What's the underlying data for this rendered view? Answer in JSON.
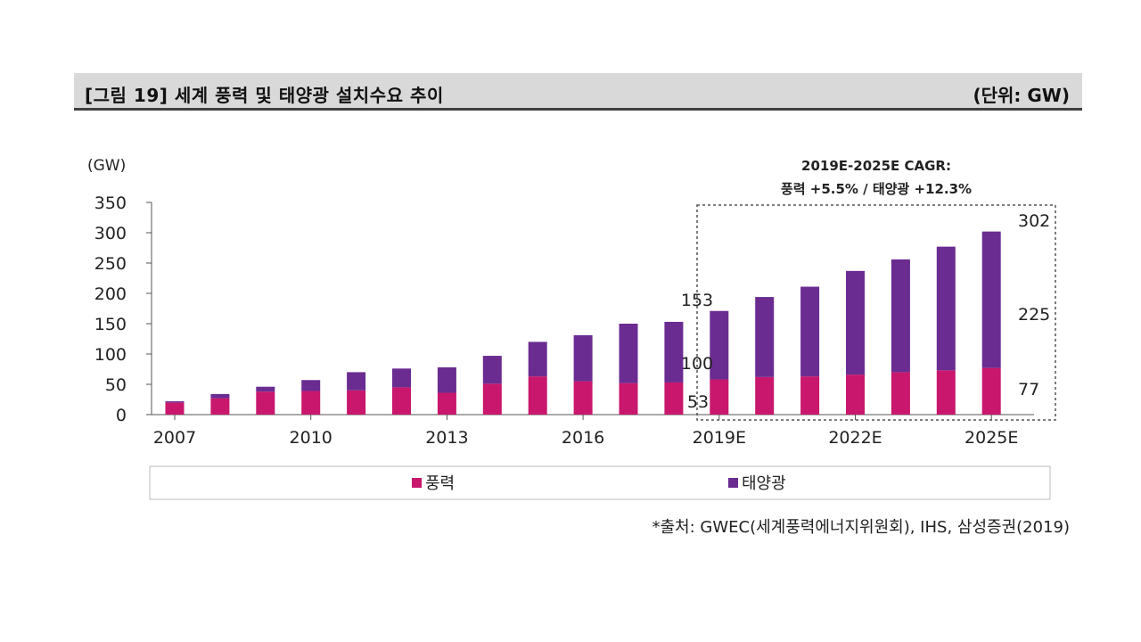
{
  "header": {
    "title": "[그림 19] 세계 풍력 및 태양광 설치수요 추이",
    "unit": "(단위: GW)"
  },
  "source": "*출처: GWEC(세계풍력에너지위원회), IHS, 삼성증권(2019)",
  "colors": {
    "wind": "#c8176d",
    "solar": "#6a2c91",
    "axis": "#555555",
    "text": "#222222"
  },
  "chart_data": {
    "type": "bar",
    "stacked": true,
    "ylabel": "(GW)",
    "ylim": [
      0,
      350
    ],
    "yticks": [
      0,
      50,
      100,
      150,
      200,
      250,
      300,
      350
    ],
    "categories": [
      "2007",
      "2008",
      "2009",
      "2010",
      "2011",
      "2012",
      "2013",
      "2014",
      "2015",
      "2016",
      "2017",
      "2018",
      "2019E",
      "2020E",
      "2021E",
      "2022E",
      "2023E",
      "2024E",
      "2025E"
    ],
    "x_tick_labels": [
      {
        "category": "2007",
        "label": "2007"
      },
      {
        "category": "2010",
        "label": "2010"
      },
      {
        "category": "2013",
        "label": "2013"
      },
      {
        "category": "2016",
        "label": "2016"
      },
      {
        "category": "2019E",
        "label": "2019E"
      },
      {
        "category": "2022E",
        "label": "2022E"
      },
      {
        "category": "2025E",
        "label": "2025E"
      }
    ],
    "series": [
      {
        "name": "풍력",
        "color": "#c8176d",
        "values": [
          20,
          27,
          38,
          39,
          40,
          45,
          36,
          51,
          63,
          55,
          52,
          53,
          58,
          62,
          63,
          66,
          70,
          73,
          77
        ]
      },
      {
        "name": "태양광",
        "color": "#6a2c91",
        "values": [
          2,
          7,
          8,
          18,
          30,
          31,
          42,
          46,
          57,
          76,
          98,
          100,
          113,
          132,
          148,
          171,
          186,
          204,
          225
        ]
      }
    ],
    "annotations": {
      "cagr_line1": "2019E-2025E CAGR:",
      "cagr_line2": "풍력 +5.5% / 태양광 +12.3%",
      "label_2018_total": "153",
      "label_2018_solar": "100",
      "label_2018_wind": "53",
      "label_2025_total": "302",
      "label_2025_solar": "225",
      "label_2025_wind": "77"
    },
    "legend": {
      "position": "bottom",
      "items": [
        "풍력",
        "태양광"
      ]
    }
  }
}
